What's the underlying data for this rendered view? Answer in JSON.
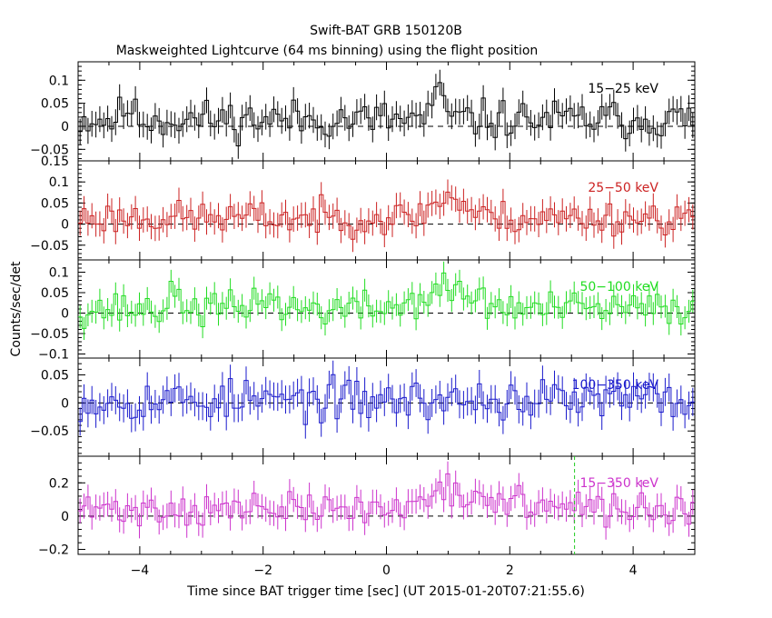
{
  "chart_data": {
    "type": "line",
    "title": "Swift-BAT GRB 150120B",
    "subtitle": "Maskweighted Lightcurve (64 ms binning) using the flight position",
    "xlabel": "Time since BAT trigger time [sec] (UT 2015-01-20T07:21:55.6)",
    "ylabel": "Counts/sec/det",
    "xlim": [
      -5,
      5
    ],
    "x_ticks": [
      "−4",
      "−2",
      "0",
      "2",
      "4"
    ],
    "x_tick_values": [
      -4,
      -2,
      0,
      2,
      4
    ],
    "bin_width_sec": 0.064,
    "marker_line_x": 3.05,
    "panels": [
      {
        "name": "15−25 keV",
        "color": "#000000",
        "ylim": [
          -0.075,
          0.14
        ],
        "y_ticks": [
          "−0.05",
          "0",
          "0.05",
          "0.1"
        ],
        "y_tick_values": [
          -0.05,
          0,
          0.05,
          0.1
        ],
        "mean": 0.015,
        "error": 0.028,
        "noise": 0.03,
        "seed": 11,
        "features": [
          {
            "t": 0.85,
            "amp": 0.05,
            "width": 0.15
          },
          {
            "t": -4.2,
            "amp": 0.03,
            "width": 0.1
          }
        ]
      },
      {
        "name": "25−50 keV",
        "color": "#cc2222",
        "ylim": [
          -0.085,
          0.15
        ],
        "y_ticks": [
          "−0.05",
          "0",
          "0.05",
          "0.1",
          "0.15"
        ],
        "y_tick_values": [
          -0.05,
          0,
          0.05,
          0.1,
          0.15
        ],
        "mean": 0.015,
        "error": 0.03,
        "noise": 0.028,
        "seed": 23,
        "features": [
          {
            "t": 1.0,
            "amp": 0.05,
            "width": 0.35
          }
        ]
      },
      {
        "name": "50−100 keV",
        "color": "#22dd22",
        "ylim": [
          -0.11,
          0.13
        ],
        "y_ticks": [
          "−0.1",
          "−0.05",
          "0",
          "0.05",
          "0.1"
        ],
        "y_tick_values": [
          -0.1,
          -0.05,
          0,
          0.05,
          0.1
        ],
        "mean": 0.01,
        "error": 0.028,
        "noise": 0.03,
        "seed": 37,
        "features": [
          {
            "t": 1.0,
            "amp": 0.045,
            "width": 0.6
          },
          {
            "t": -2.0,
            "amp": 0.035,
            "width": 0.2
          },
          {
            "t": -3.4,
            "amp": 0.03,
            "width": 0.15
          }
        ]
      },
      {
        "name": "100−350 keV",
        "color": "#1a1acc",
        "ylim": [
          -0.095,
          0.08
        ],
        "y_ticks": [
          "−0.05",
          "0",
          "0.05"
        ],
        "y_tick_values": [
          -0.05,
          0,
          0.05
        ],
        "mean": 0.005,
        "error": 0.025,
        "noise": 0.026,
        "seed": 53,
        "features": []
      },
      {
        "name": "15−350 keV",
        "color": "#cc33cc",
        "ylim": [
          -0.23,
          0.36
        ],
        "y_ticks": [
          "−0.2",
          "0",
          "0.2"
        ],
        "y_tick_values": [
          -0.2,
          0,
          0.2
        ],
        "mean": 0.04,
        "error": 0.075,
        "noise": 0.07,
        "seed": 71,
        "features": [
          {
            "t": 0.9,
            "amp": 0.16,
            "width": 0.35
          },
          {
            "t": 2.0,
            "amp": 0.06,
            "width": 0.5
          }
        ]
      }
    ]
  }
}
